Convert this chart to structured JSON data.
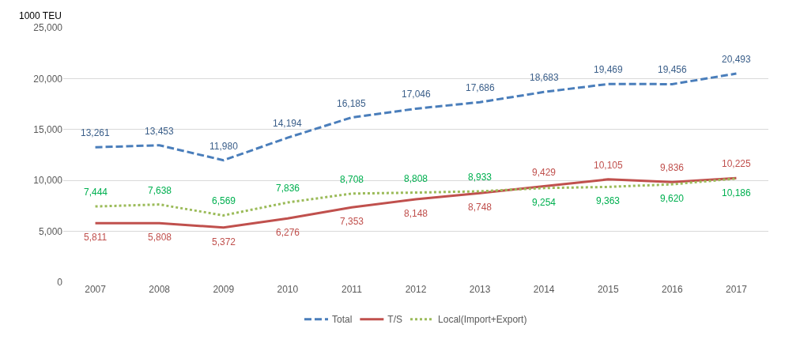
{
  "chart_data": {
    "type": "line",
    "ylabel": "1000 TEU",
    "categories": [
      "2007",
      "2008",
      "2009",
      "2010",
      "2011",
      "2012",
      "2013",
      "2014",
      "2015",
      "2016",
      "2017"
    ],
    "series": [
      {
        "name": "Total",
        "color": "#4a7ebb",
        "line_style": "dashed",
        "values": [
          13261,
          13453,
          11980,
          14194,
          16185,
          17046,
          17686,
          18683,
          19469,
          19456,
          20493
        ],
        "value_labels": [
          "13,261",
          "13,453",
          "11,980",
          "14,194",
          "16,185",
          "17,046",
          "17,686",
          "18,683",
          "19,469",
          "19,456",
          "20,493"
        ]
      },
      {
        "name": "T/S",
        "color": "#c0504d",
        "line_style": "solid",
        "values": [
          5811,
          5808,
          5372,
          6276,
          7353,
          8148,
          8748,
          9429,
          10105,
          9836,
          10225
        ],
        "value_labels": [
          "5,811",
          "5,808",
          "5,372",
          "6,276",
          "7,353",
          "8,148",
          "8,748",
          "9,429",
          "10,105",
          "9,836",
          "10,225"
        ]
      },
      {
        "name": "Local(Import+Export)",
        "color": "#9bbb59",
        "line_style": "dotted",
        "values": [
          7444,
          7638,
          6569,
          7836,
          8708,
          8808,
          8933,
          9254,
          9363,
          9620,
          10186
        ],
        "value_labels": [
          "7,444",
          "7,638",
          "6,569",
          "7,836",
          "8,708",
          "8,808",
          "8,933",
          "9,254",
          "9,363",
          "9,620",
          "10,186"
        ]
      }
    ],
    "ylim": [
      0,
      25000
    ],
    "yticks": [
      {
        "value": 0,
        "label": "0"
      },
      {
        "value": 5000,
        "label": "5,000"
      },
      {
        "value": 10000,
        "label": "10,000"
      },
      {
        "value": 15000,
        "label": "15,000"
      },
      {
        "value": 20000,
        "label": "20,000"
      },
      {
        "value": 25000,
        "label": "25,000"
      }
    ],
    "grid": "y",
    "legend": "bottom",
    "marker": "none"
  }
}
